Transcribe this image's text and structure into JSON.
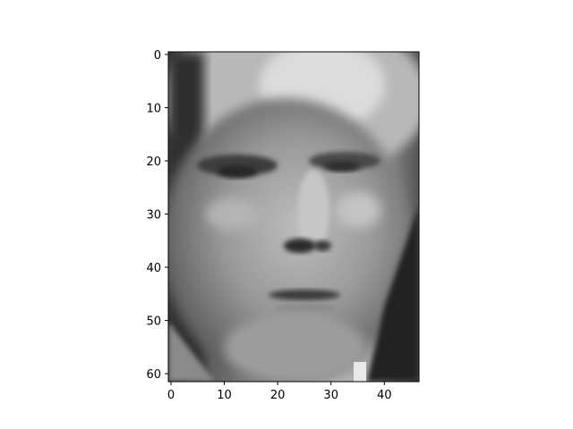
{
  "figure": {
    "image": {
      "description_name": "grayscale-face-image",
      "colormap": "gray",
      "rows": 62,
      "cols": 47
    },
    "x_axis": {
      "tick_labels": [
        "0",
        "10",
        "20",
        "30",
        "40"
      ],
      "tick_values": [
        0,
        10,
        20,
        30,
        40
      ]
    },
    "y_axis": {
      "tick_labels": [
        "0",
        "10",
        "20",
        "30",
        "40",
        "50",
        "60"
      ],
      "tick_values": [
        0,
        10,
        20,
        30,
        40,
        50,
        60
      ]
    }
  }
}
